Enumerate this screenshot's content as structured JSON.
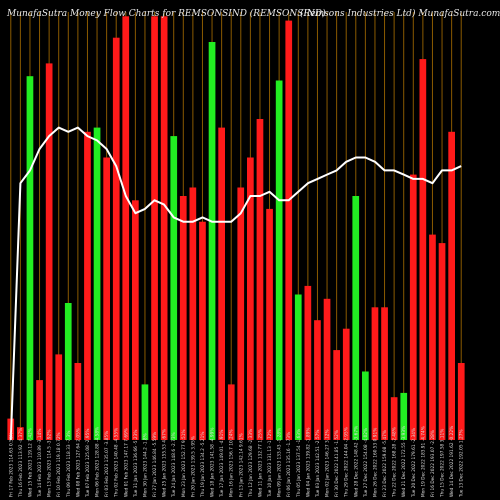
{
  "header": {
    "title_left": "MunafaSutra  Money Flow  Charts for REMSONSIND  (REMSONSIND)",
    "title_right": "(Remsons Industries Ltd) MunafaSutra.com"
  },
  "colors": {
    "background": "#000000",
    "up": "#22ee22",
    "down": "#ff1a1a",
    "line": "#ffffff",
    "grid": "#8a5a00",
    "label": "#dddddd"
  },
  "chart_data": {
    "type": "bar",
    "ylim": [
      0,
      100
    ],
    "grid": "vertical",
    "categories": [
      "Fri 17 Feb 2023 114.63 0.51%",
      "Thu 16 Feb 2023 113.92 -4.37%",
      "Wed 15 Feb 2023 119.12 7.42%",
      "Tue 14 Feb 2023 110.89 -3.14%",
      "Mon 13 Feb 2023 114.5 -3.92%",
      "Fri 10 Feb 2023 119.18 0.72%",
      "Thu 09 Feb 2023 118.33 -7.3%",
      "Wed 08 Feb 2023 127.64 2.05%",
      "Tue 07 Feb 2023 125.08 -2.95%",
      "Mon 06 Feb 2023 128.88 -4.58%",
      "Fri 03 Feb 2023 135.07 -3.85%",
      "Thu 02 Feb 2023 140.48 -4.55%",
      "Wed 01 Feb 2023 147.17 7.69%",
      "Tue 31 Jan 2023 136.66 -5.23%",
      "Mon 30 Jan 2023 144.2 -1.8%",
      "Fri 27 Jan 2023 146.84 -5.59%",
      "Wed 25 Jan 2023 155.53 4.67%",
      "Tue 24 Jan 2023 148.6 -2.73%",
      "Mon 23 Jan 2023 152.77 9.51%",
      "Fri 20 Jan 2023 139.5 3.95%",
      "Thu 19 Jan 2023 134.2 -5.21%",
      "Wed 18 Jan 2023 141.58 -4.99%",
      "Tue 17 Jan 2023 149.01 -4.91%",
      "Mon 16 Jan 2023 156.7 10.24%",
      "Fri 13 Jan 2023 142.14 9.61%",
      "Thu 12 Jan 2023 129.68 -2.33%",
      "Wed 11 Jan 2023 132.77 1.25%",
      "Tue 10 Jan 2023 131.13 -1.72%",
      "Mon 09 Jan 2023 133.43 -1.28%",
      "Fri 06 Jan 2023 135.16 -1.73%",
      "Thu 05 Jan 2023 137.54 -1.63%",
      "Wed 04 Jan 2023 139.82 -1.89%",
      "Tue 03 Jan 2023 142.51 -2.57%",
      "Mon 02 Jan 2023 146.27 3.12%",
      "Fri 30 Dec 2022 141.85 -1.52%",
      "Thu 29 Dec 2022 144.04 -2.95%",
      "Wed 28 Dec 2022 148.42 -3.67%",
      "Tue 27 Dec 2022 154.08 -4.02%",
      "Mon 26 Dec 2022 160.53 0.91%",
      "Fri 23 Dec 2022 159.08 -5.47%",
      "Thu 22 Dec 2022 168.28 -2.48%",
      "Wed 21 Dec 2022 172.55 -3.93%",
      "Tue 20 Dec 2022 179.61 -2.34%",
      "Mon 19 Dec 2022 183.91 -4.74%",
      "Fri 16 Dec 2022 193.07 -2.28%",
      "Thu 15 Dec 2022 197.58 3.11%",
      "Wed 14 Dec 2022 191.62 -0.22%",
      "Tue 13 Dec 2022 192.05 1.27%"
    ],
    "series": [
      {
        "values": [
          5,
          3,
          85,
          14,
          88,
          20,
          32,
          18,
          72,
          73,
          66,
          94,
          99,
          56,
          13,
          99,
          99,
          71,
          57,
          59,
          51,
          93,
          73,
          13,
          59,
          66,
          75,
          54,
          84,
          98,
          34,
          36,
          28,
          33,
          21,
          26,
          57,
          16,
          31,
          31,
          10,
          11,
          62,
          89,
          48,
          46,
          72,
          18
        ],
        "colors": [
          "down",
          "down",
          "up",
          "down",
          "down",
          "down",
          "up",
          "down",
          "down",
          "up",
          "down",
          "down",
          "down",
          "down",
          "up",
          "down",
          "down",
          "up",
          "down",
          "down",
          "down",
          "up",
          "down",
          "down",
          "down",
          "down",
          "down",
          "down",
          "up",
          "down",
          "up",
          "down",
          "down",
          "down",
          "down",
          "down",
          "up",
          "up",
          "down",
          "down",
          "down",
          "up",
          "down",
          "down",
          "down",
          "down",
          "down",
          "down"
        ]
      },
      {
        "name": "",
        "values": [
          0,
          60,
          63,
          68,
          71,
          73,
          72,
          73,
          71,
          70,
          68,
          64,
          57,
          53,
          54,
          56,
          55,
          52,
          51,
          51,
          52,
          51,
          51,
          51,
          53,
          57,
          57,
          58,
          56,
          56,
          58,
          60,
          61,
          62,
          63,
          65,
          66,
          66,
          65,
          63,
          63,
          62,
          61,
          61,
          60,
          63,
          63,
          64
        ]
      }
    ]
  }
}
